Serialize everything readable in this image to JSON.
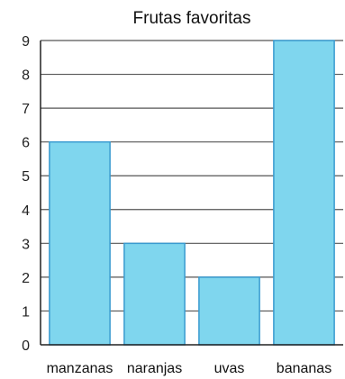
{
  "chart_data": {
    "type": "bar",
    "title": "Frutas favoritas",
    "xlabel": "",
    "ylabel": "",
    "categories": [
      "manzanas",
      "naranjas",
      "uvas",
      "bananas"
    ],
    "values": [
      6,
      3,
      2,
      9
    ],
    "ylim": [
      0,
      9
    ],
    "yticks": [
      "0",
      "1",
      "2",
      "3",
      "4",
      "5",
      "6",
      "7",
      "8",
      "9"
    ],
    "grid": true,
    "legend": "none"
  },
  "colors": {
    "bar_fill": "#7fd6ee",
    "bar_stroke": "#3a9bd0",
    "grid": "#555555",
    "axis": "#222222"
  }
}
